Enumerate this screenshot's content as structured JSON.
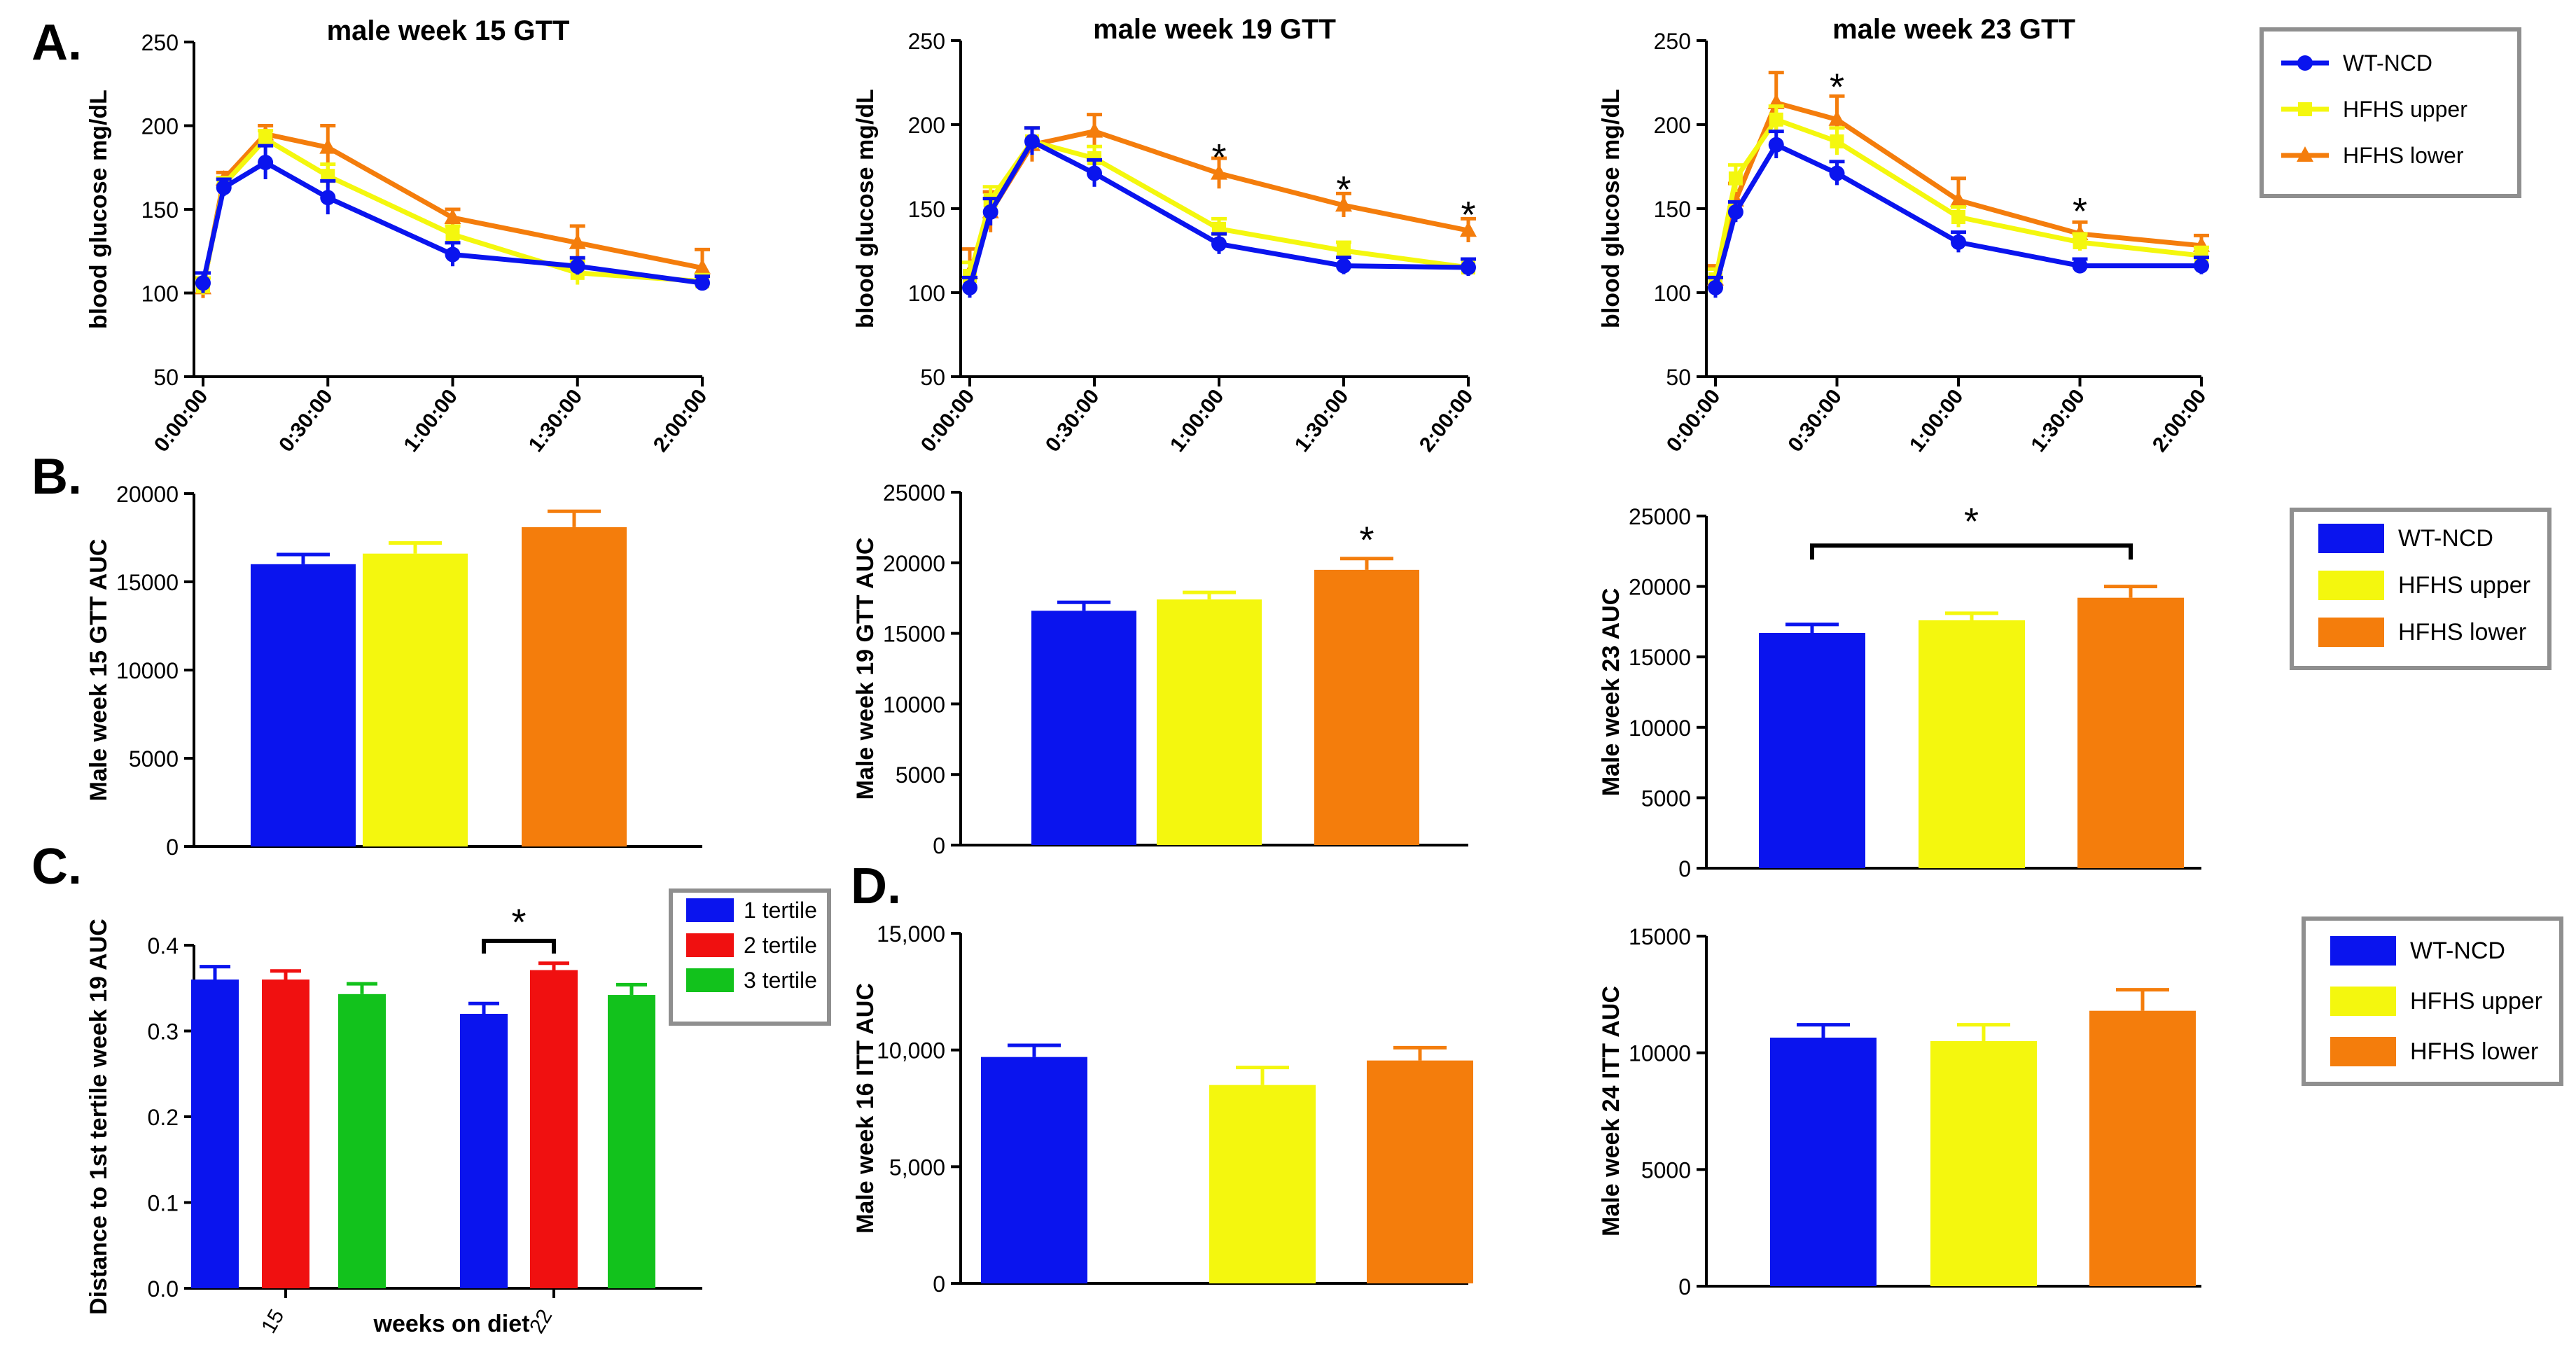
{
  "colors": {
    "wt": "#0a14ee",
    "upper": "#f4f70e",
    "lower": "#f47d0c",
    "t1": "#0a14ee",
    "t2": "#f01010",
    "t3": "#12c21c"
  },
  "panel_labels": {
    "a": "A.",
    "b": "B.",
    "c": "C.",
    "d": "D."
  },
  "chart_data": [
    {
      "id": "gtt15",
      "type": "line",
      "title": "male week 15 GTT",
      "ylabel": "blood glucose mg/dL",
      "xlabel": "",
      "ylim": [
        50,
        250
      ],
      "yticks": [
        "50",
        "100",
        "150",
        "200",
        "250"
      ],
      "x": [
        0,
        5,
        15,
        30,
        60,
        90,
        120
      ],
      "xticks": [
        {
          "v": 0,
          "label": "0:00:00"
        },
        {
          "v": 30,
          "label": "0:30:00"
        },
        {
          "v": 60,
          "label": "1:00:00"
        },
        {
          "v": 90,
          "label": "1:30:00"
        },
        {
          "v": 120,
          "label": "2:00:00"
        }
      ],
      "series": [
        {
          "name": "HFHS lower",
          "color": "lower",
          "marker": "triangle",
          "values": [
            103,
            168,
            195,
            187,
            145,
            130,
            115
          ],
          "errors": [
            6,
            4,
            5,
            13,
            5,
            10,
            11
          ]
        },
        {
          "name": "HFHS upper",
          "color": "upper",
          "marker": "square",
          "values": [
            104,
            165,
            192,
            170,
            135,
            112,
            107
          ],
          "errors": [
            5,
            4,
            5,
            7,
            5,
            7,
            4
          ]
        },
        {
          "name": "WT-NCD",
          "color": "wt",
          "marker": "circle",
          "values": [
            106,
            163,
            178,
            157,
            123,
            116,
            106
          ],
          "errors": [
            6,
            5,
            10,
            10,
            7,
            5,
            4
          ]
        }
      ],
      "annotations": []
    },
    {
      "id": "gtt19",
      "type": "line",
      "title": "male week 19 GTT",
      "ylabel": "blood glucose mg/dL",
      "xlabel": "",
      "ylim": [
        50,
        250
      ],
      "yticks": [
        "50",
        "100",
        "150",
        "200",
        "250"
      ],
      "x": [
        0,
        5,
        15,
        30,
        60,
        90,
        120
      ],
      "xticks": [
        {
          "v": 0,
          "label": "0:00:00"
        },
        {
          "v": 30,
          "label": "0:30:00"
        },
        {
          "v": 60,
          "label": "1:00:00"
        },
        {
          "v": 90,
          "label": "1:30:00"
        },
        {
          "v": 120,
          "label": "2:00:00"
        }
      ],
      "series": [
        {
          "name": "HFHS lower",
          "color": "lower",
          "marker": "triangle",
          "values": [
            112,
            148,
            188,
            196,
            171,
            152,
            137
          ],
          "errors": [
            14,
            12,
            10,
            10,
            9,
            7,
            7
          ]
        },
        {
          "name": "HFHS upper",
          "color": "upper",
          "marker": "square",
          "values": [
            110,
            155,
            190,
            180,
            138,
            125,
            115
          ],
          "errors": [
            8,
            8,
            8,
            7,
            6,
            5,
            5
          ]
        },
        {
          "name": "WT-NCD",
          "color": "wt",
          "marker": "circle",
          "values": [
            103,
            148,
            190,
            171,
            129,
            116,
            115
          ],
          "errors": [
            6,
            8,
            8,
            8,
            6,
            5,
            5
          ]
        }
      ],
      "annotations": [
        {
          "text": "*",
          "x": 60,
          "y": 182
        },
        {
          "text": "*",
          "x": 90,
          "y": 163
        },
        {
          "text": "*",
          "x": 120,
          "y": 148
        }
      ]
    },
    {
      "id": "gtt23",
      "type": "line",
      "title": "male week 23 GTT",
      "ylabel": "blood glucose mg/dL",
      "xlabel": "",
      "ylim": [
        50,
        250
      ],
      "yticks": [
        "50",
        "100",
        "150",
        "200",
        "250"
      ],
      "x": [
        0,
        5,
        15,
        30,
        60,
        90,
        120
      ],
      "xticks": [
        {
          "v": 0,
          "label": "0:00:00"
        },
        {
          "v": 30,
          "label": "0:30:00"
        },
        {
          "v": 60,
          "label": "1:00:00"
        },
        {
          "v": 90,
          "label": "1:30:00"
        },
        {
          "v": 120,
          "label": "2:00:00"
        }
      ],
      "series": [
        {
          "name": "HFHS lower",
          "color": "lower",
          "marker": "triangle",
          "values": [
            108,
            155,
            213,
            203,
            155,
            135,
            128
          ],
          "errors": [
            8,
            10,
            18,
            14,
            13,
            7,
            6
          ]
        },
        {
          "name": "HFHS upper",
          "color": "upper",
          "marker": "square",
          "values": [
            108,
            168,
            203,
            190,
            145,
            130,
            122
          ],
          "errors": [
            6,
            8,
            8,
            8,
            6,
            5,
            5
          ]
        },
        {
          "name": "WT-NCD",
          "color": "wt",
          "marker": "circle",
          "values": [
            103,
            148,
            188,
            171,
            130,
            116,
            116
          ],
          "errors": [
            6,
            6,
            8,
            7,
            6,
            4,
            5
          ]
        }
      ],
      "annotations": [
        {
          "text": "*",
          "x": 30,
          "y": 224
        },
        {
          "text": "*",
          "x": 90,
          "y": 150
        }
      ]
    },
    {
      "id": "auc15",
      "type": "bar",
      "title": "",
      "ylabel": "Male week 15 GTT  AUC",
      "xlabel": "",
      "ylim": [
        0,
        20000
      ],
      "yticks": [
        "0",
        "5000",
        "10000",
        "15000",
        "20000"
      ],
      "categories": [
        "WT-NCD",
        "HFHS upper",
        "HFHS lower"
      ],
      "bar_colors": [
        "wt",
        "upper",
        "lower"
      ],
      "values": [
        16000,
        16600,
        18100
      ],
      "errors": [
        550,
        600,
        900
      ],
      "annotations": []
    },
    {
      "id": "auc19",
      "type": "bar",
      "title": "",
      "ylabel": "Male week 19 GTT AUC",
      "xlabel": "",
      "ylim": [
        0,
        25000
      ],
      "yticks": [
        "0",
        "5000",
        "10000",
        "15000",
        "20000",
        "25000"
      ],
      "categories": [
        "WT-NCD",
        "HFHS upper",
        "HFHS lower"
      ],
      "bar_colors": [
        "wt",
        "upper",
        "lower"
      ],
      "values": [
        16600,
        17400,
        19500
      ],
      "errors": [
        600,
        500,
        800
      ],
      "annotations": [
        {
          "text": "*",
          "x": 2,
          "y": 21800
        }
      ]
    },
    {
      "id": "auc23",
      "type": "bar",
      "title": "",
      "ylabel": "Male week 23 AUC",
      "xlabel": "",
      "ylim": [
        0,
        25000
      ],
      "yticks": [
        "0",
        "5000",
        "10000",
        "15000",
        "20000",
        "25000"
      ],
      "categories": [
        "WT-NCD",
        "HFHS upper",
        "HFHS lower"
      ],
      "bar_colors": [
        "wt",
        "upper",
        "lower"
      ],
      "values": [
        16700,
        17600,
        19200
      ],
      "errors": [
        600,
        500,
        800
      ],
      "annotations": [
        {
          "text": "*",
          "x": 1,
          "y": 24800
        }
      ],
      "brackets": [
        {
          "from": 0,
          "to": 2,
          "y": 22900
        }
      ]
    },
    {
      "id": "tertile",
      "type": "bar",
      "title": "",
      "ylabel": "Distance to 1st tertile week 19 AUC",
      "xlabel": "weeks on diet",
      "ylim": [
        0,
        0.4
      ],
      "yticks": [
        "0.0",
        "0.1",
        "0.2",
        "0.3",
        "0.4"
      ],
      "groups": [
        "15",
        "22"
      ],
      "series": [
        {
          "name": "1 tertile",
          "color": "t1",
          "values": [
            0.36,
            0.32
          ],
          "errors": [
            0.015,
            0.012
          ]
        },
        {
          "name": "2 tertile",
          "color": "t2",
          "values": [
            0.36,
            0.371
          ],
          "errors": [
            0.01,
            0.008
          ]
        },
        {
          "name": "3 tertile",
          "color": "t3",
          "values": [
            0.343,
            0.342
          ],
          "errors": [
            0.012,
            0.012
          ]
        }
      ],
      "annotations": [
        {
          "text": "*",
          "group": 1,
          "y": 0.43
        }
      ],
      "brackets": [
        {
          "group": 1,
          "from": 0,
          "to": 1,
          "y": 0.405
        }
      ]
    },
    {
      "id": "itt16",
      "type": "bar",
      "title": "",
      "ylabel": "Male week 16 ITT AUC",
      "xlabel": "",
      "ylim": [
        0,
        15000
      ],
      "yticks": [
        "0",
        "5,000",
        "10,000",
        "15,000"
      ],
      "categories": [
        "WT-NCD",
        "HFHS upper",
        "HFHS lower"
      ],
      "bar_colors": [
        "wt",
        "upper",
        "lower"
      ],
      "values": [
        9700,
        8500,
        9550
      ],
      "errors": [
        500,
        750,
        550
      ],
      "annotations": []
    },
    {
      "id": "itt24",
      "type": "bar",
      "title": "",
      "ylabel": "Male week 24 ITT AUC",
      "xlabel": "",
      "ylim": [
        0,
        15000
      ],
      "yticks": [
        "0",
        "5000",
        "10000",
        "15000"
      ],
      "categories": [
        "WT-NCD",
        "HFHS upper",
        "HFHS lower"
      ],
      "bar_colors": [
        "wt",
        "upper",
        "lower"
      ],
      "values": [
        10650,
        10500,
        11800
      ],
      "errors": [
        550,
        700,
        900
      ],
      "annotations": []
    }
  ],
  "legends": [
    {
      "id": "legA",
      "type": "line",
      "items": [
        {
          "label": "WT-NCD",
          "color": "wt",
          "marker": "circle"
        },
        {
          "label": "HFHS upper",
          "color": "upper",
          "marker": "square"
        },
        {
          "label": "HFHS lower",
          "color": "lower",
          "marker": "triangle"
        }
      ]
    },
    {
      "id": "legB",
      "type": "box",
      "items": [
        {
          "label": "WT-NCD",
          "color": "wt"
        },
        {
          "label": "HFHS upper",
          "color": "upper"
        },
        {
          "label": "HFHS lower",
          "color": "lower"
        }
      ]
    },
    {
      "id": "legC",
      "type": "box",
      "items": [
        {
          "label": "1 tertile",
          "color": "t1"
        },
        {
          "label": "2 tertile",
          "color": "t2"
        },
        {
          "label": "3 tertile",
          "color": "t3"
        }
      ]
    },
    {
      "id": "legD",
      "type": "box",
      "items": [
        {
          "label": "WT-NCD",
          "color": "wt"
        },
        {
          "label": "HFHS upper",
          "color": "upper"
        },
        {
          "label": "HFHS lower",
          "color": "lower"
        }
      ]
    }
  ]
}
